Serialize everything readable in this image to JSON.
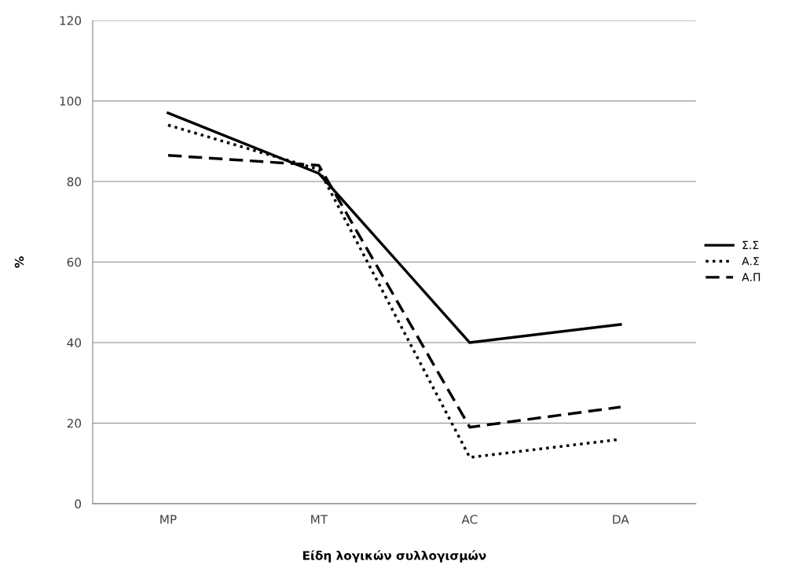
{
  "chart_data": {
    "type": "line",
    "xlabel": "Είδη λογικών συλλογισμών",
    "ylabel": "%",
    "categories": [
      "MP",
      "MT",
      "AC",
      "DA"
    ],
    "series": [
      {
        "name": "Σ.Σ",
        "color": "#000000",
        "line_style": "solid",
        "values": [
          97,
          82,
          40,
          44.5
        ]
      },
      {
        "name": "Α.Σ",
        "color": "#000000",
        "line_style": "dotted",
        "values": [
          94,
          83,
          11.5,
          16
        ]
      },
      {
        "name": "Α.Π",
        "color": "#000000",
        "line_style": "dashed",
        "values": [
          86.5,
          84,
          19,
          24
        ]
      }
    ],
    "ylim": [
      0,
      120
    ],
    "yticks": [
      0,
      20,
      40,
      60,
      80,
      100,
      120
    ],
    "grid": "y",
    "legend": "right",
    "marker": "none"
  }
}
